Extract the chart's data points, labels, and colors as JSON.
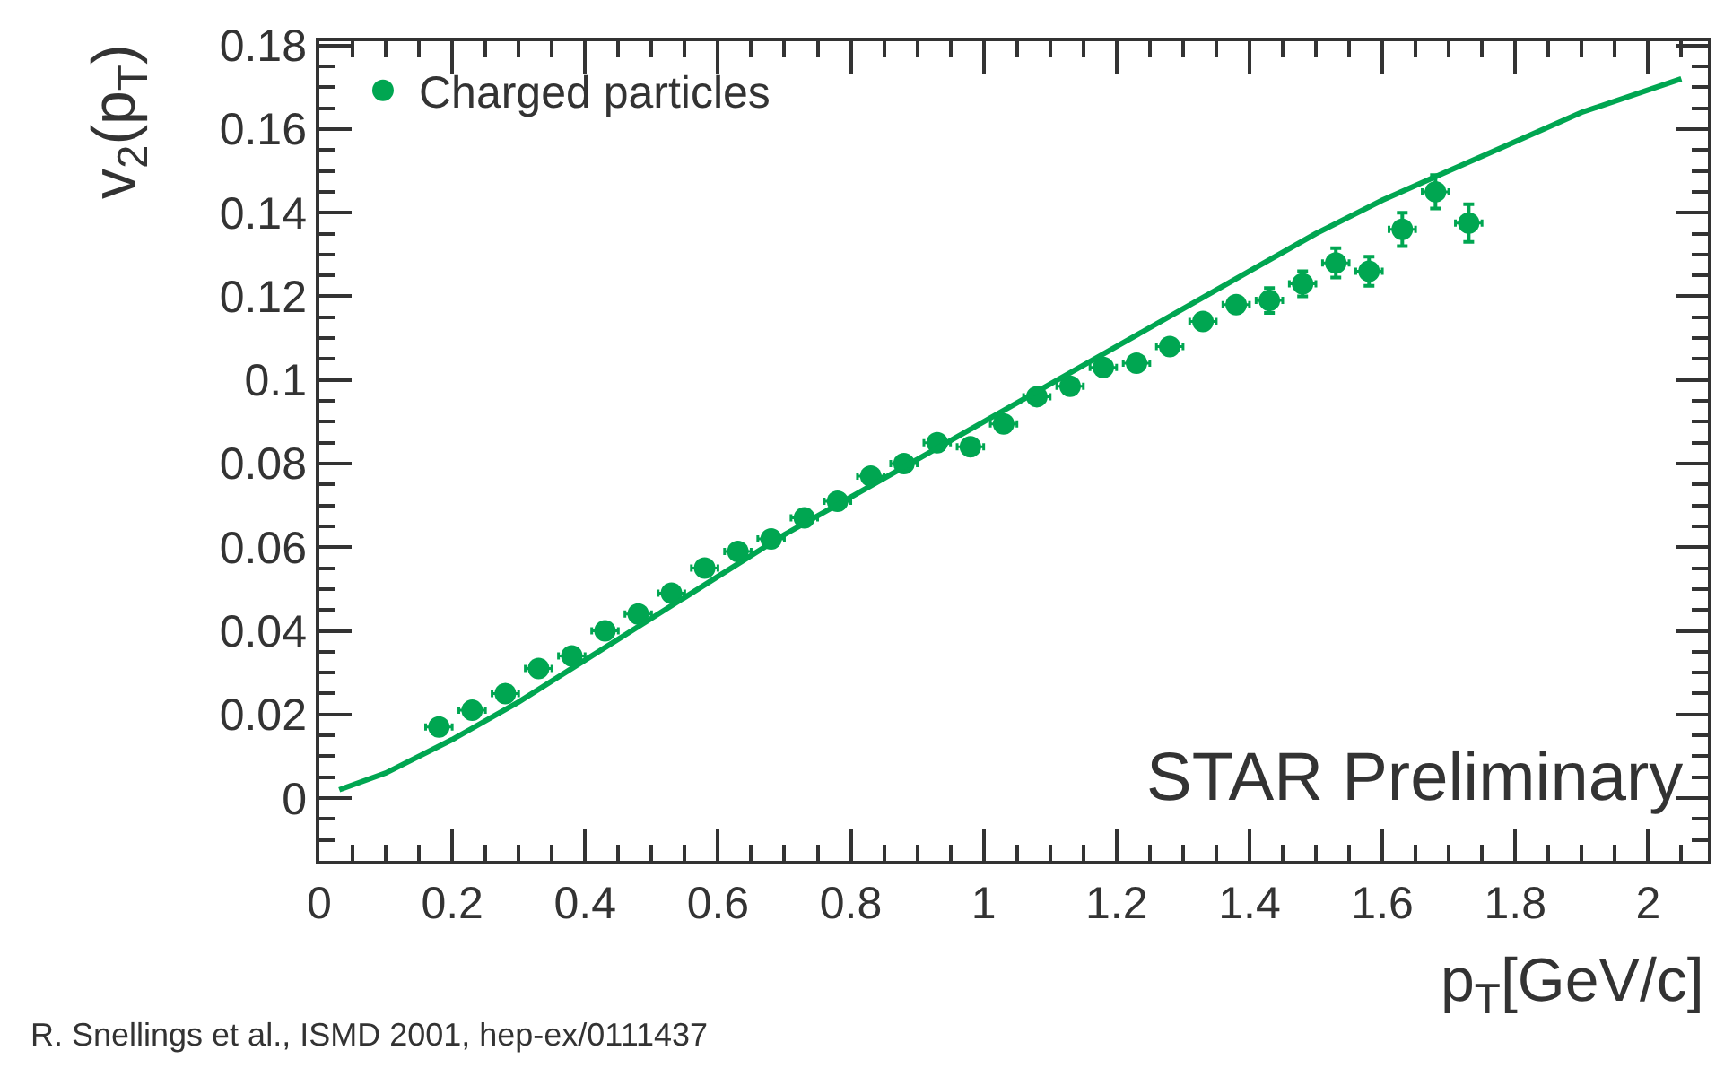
{
  "chart_data": {
    "type": "scatter",
    "xlabel": "p$_{T}$[GeV/c]",
    "ylabel": "v$_{2}$(p$_{T}$)",
    "annotations": [
      "STAR Preliminary",
      "R. Snellings et al., ISMD 2001, hep-ex/0111437"
    ],
    "xlim": [
      0,
      2.09
    ],
    "ylim": [
      -0.015,
      0.181
    ],
    "xticks": [
      0,
      0.2,
      0.4,
      0.6,
      0.8,
      1,
      1.2,
      1.4,
      1.6,
      1.8,
      2
    ],
    "yticks": [
      0,
      0.02,
      0.04,
      0.06,
      0.08,
      0.1,
      0.12,
      0.14,
      0.16,
      0.18
    ],
    "legend": "top left",
    "marker": "circle",
    "series": [
      {
        "name": "Charged particles",
        "color": "#00a651",
        "x": [
          0.18,
          0.23,
          0.28,
          0.33,
          0.38,
          0.43,
          0.48,
          0.53,
          0.58,
          0.63,
          0.68,
          0.73,
          0.78,
          0.83,
          0.88,
          0.93,
          0.98,
          1.03,
          1.08,
          1.13,
          1.18,
          1.23,
          1.28,
          1.33,
          1.38,
          1.43,
          1.48,
          1.53,
          1.58,
          1.63,
          1.68,
          1.73
        ],
        "values": [
          0.017,
          0.021,
          0.025,
          0.031,
          0.034,
          0.04,
          0.044,
          0.049,
          0.055,
          0.059,
          0.062,
          0.067,
          0.071,
          0.077,
          0.08,
          0.085,
          0.084,
          0.0895,
          0.096,
          0.0985,
          0.103,
          0.104,
          0.108,
          0.114,
          0.118,
          0.119,
          0.123,
          0.128,
          0.126,
          0.136,
          0.145,
          0.1375
        ],
        "errors": [
          null,
          null,
          null,
          null,
          null,
          null,
          null,
          null,
          null,
          null,
          null,
          null,
          null,
          null,
          null,
          null,
          null,
          null,
          null,
          null,
          null,
          null,
          null,
          null,
          null,
          0.003,
          0.003,
          0.0035,
          0.0035,
          0.004,
          0.004,
          0.0045
        ],
        "xerrors": [
          0.02,
          0.02,
          0.02,
          0.02,
          0.02,
          0.02,
          0.02,
          0.02,
          0.02,
          0.02,
          0.02,
          0.02,
          0.02,
          0.02,
          0.02,
          0.02,
          0.02,
          0.02,
          0.02,
          0.02,
          0.02,
          0.02,
          0.02,
          0.02,
          0.02,
          0.02,
          0.02,
          0.02,
          0.02,
          0.02,
          0.02,
          0.02
        ]
      },
      {
        "type": "line",
        "color": "#00a651",
        "line_style": "solid",
        "marker": "none",
        "x": [
          0.03,
          0.1,
          0.2,
          0.3,
          0.4,
          0.5,
          0.6,
          0.7,
          0.8,
          0.9,
          1.0,
          1.1,
          1.2,
          1.3,
          1.4,
          1.5,
          1.6,
          1.7,
          1.8,
          1.9,
          2.05
        ],
        "values": [
          0.002,
          0.006,
          0.014,
          0.023,
          0.033,
          0.043,
          0.053,
          0.063,
          0.072,
          0.081,
          0.09,
          0.099,
          0.108,
          0.117,
          0.126,
          0.135,
          0.143,
          0.15,
          0.157,
          0.164,
          0.172
        ]
      }
    ]
  }
}
